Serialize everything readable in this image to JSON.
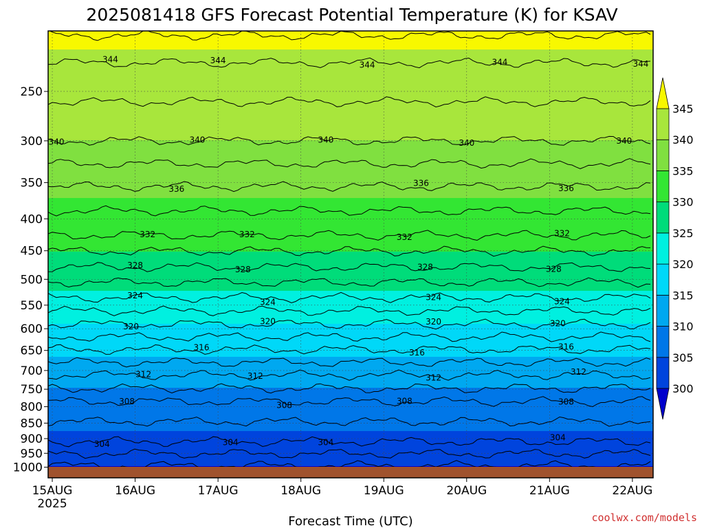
{
  "chart_data": {
    "type": "contour",
    "title": "2025081418 GFS Forecast Potential Temperature (K) for KSAV",
    "xlabel": "Forecast Time (UTC)",
    "credit": "coolwx.com/models",
    "x_ticks": [
      {
        "label": "15AUG",
        "sub": "2025",
        "day": 0
      },
      {
        "label": "16AUG",
        "sub": "",
        "day": 1
      },
      {
        "label": "17AUG",
        "sub": "",
        "day": 2
      },
      {
        "label": "18AUG",
        "sub": "",
        "day": 3
      },
      {
        "label": "19AUG",
        "sub": "",
        "day": 4
      },
      {
        "label": "20AUG",
        "sub": "",
        "day": 5
      },
      {
        "label": "21AUG",
        "sub": "",
        "day": 6
      },
      {
        "label": "22AUG",
        "sub": "",
        "day": 7
      }
    ],
    "y_ticks": [
      250,
      300,
      350,
      400,
      450,
      500,
      550,
      600,
      650,
      700,
      750,
      800,
      850,
      900,
      950,
      1000
    ],
    "y_range_hpa": [
      200,
      1040
    ],
    "x_range_days": [
      -0.05,
      7.25
    ],
    "colorbar": {
      "levels": [
        300,
        305,
        310,
        315,
        320,
        325,
        330,
        335,
        340,
        345
      ],
      "colors": [
        "#0000cc",
        "#0044dd",
        "#0077e8",
        "#00a8f0",
        "#00d8f8",
        "#00f0e0",
        "#00dc7a",
        "#33e633",
        "#80e040",
        "#a8e63c",
        "#f8f800"
      ]
    },
    "contours": [
      {
        "value": 304,
        "p_hpa": 910,
        "labels": [
          {
            "day": 0.6,
            "text": "304"
          },
          {
            "day": 2.15,
            "text": "304"
          },
          {
            "day": 3.3,
            "text": "304"
          },
          {
            "day": 6.1,
            "text": "304"
          }
        ]
      },
      {
        "value": 308,
        "p_hpa": 785,
        "labels": [
          {
            "day": 0.9,
            "text": "308"
          },
          {
            "day": 2.8,
            "text": "308"
          },
          {
            "day": 4.25,
            "text": "308"
          },
          {
            "day": 6.2,
            "text": "308"
          }
        ]
      },
      {
        "value": 312,
        "p_hpa": 712,
        "labels": [
          {
            "day": 1.1,
            "text": "312"
          },
          {
            "day": 2.45,
            "text": "312"
          },
          {
            "day": 4.6,
            "text": "312"
          },
          {
            "day": 6.35,
            "text": "312"
          }
        ]
      },
      {
        "value": 316,
        "p_hpa": 648,
        "labels": [
          {
            "day": 1.8,
            "text": "316"
          },
          {
            "day": 4.4,
            "text": "316"
          },
          {
            "day": 6.2,
            "text": "316"
          }
        ]
      },
      {
        "value": 320,
        "p_hpa": 590,
        "labels": [
          {
            "day": 0.95,
            "text": "320"
          },
          {
            "day": 2.6,
            "text": "320"
          },
          {
            "day": 4.6,
            "text": "320"
          },
          {
            "day": 6.1,
            "text": "320"
          }
        ]
      },
      {
        "value": 324,
        "p_hpa": 535,
        "labels": [
          {
            "day": 1.0,
            "text": "324"
          },
          {
            "day": 2.6,
            "text": "324"
          },
          {
            "day": 4.6,
            "text": "324"
          },
          {
            "day": 6.15,
            "text": "324"
          }
        ]
      },
      {
        "value": 328,
        "p_hpa": 478,
        "labels": [
          {
            "day": 1.0,
            "text": "328"
          },
          {
            "day": 2.3,
            "text": "328"
          },
          {
            "day": 4.5,
            "text": "328"
          },
          {
            "day": 6.05,
            "text": "328"
          }
        ]
      },
      {
        "value": 332,
        "p_hpa": 425,
        "labels": [
          {
            "day": 1.15,
            "text": "332"
          },
          {
            "day": 2.35,
            "text": "332"
          },
          {
            "day": 4.25,
            "text": "332"
          },
          {
            "day": 6.15,
            "text": "332"
          }
        ]
      },
      {
        "value": 336,
        "p_hpa": 355,
        "labels": [
          {
            "day": 1.5,
            "text": "336"
          },
          {
            "day": 4.45,
            "text": "336"
          },
          {
            "day": 6.2,
            "text": "336"
          }
        ]
      },
      {
        "value": 340,
        "p_hpa": 300,
        "labels": [
          {
            "day": 0.05,
            "text": "340"
          },
          {
            "day": 1.75,
            "text": "340"
          },
          {
            "day": 3.3,
            "text": "340"
          },
          {
            "day": 5.0,
            "text": "340"
          },
          {
            "day": 6.9,
            "text": "340"
          }
        ]
      },
      {
        "value": 344,
        "p_hpa": 225,
        "labels": [
          {
            "day": 0.7,
            "text": "344"
          },
          {
            "day": 2.0,
            "text": "344"
          },
          {
            "day": 3.8,
            "text": "344"
          },
          {
            "day": 5.4,
            "text": "344"
          },
          {
            "day": 7.1,
            "text": "344"
          }
        ]
      }
    ]
  }
}
